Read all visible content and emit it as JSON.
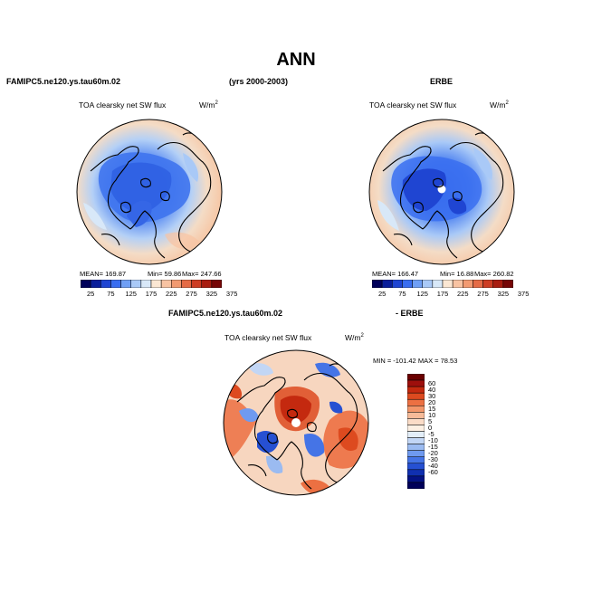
{
  "page": {
    "title": "ANN",
    "model_label": "FAMIPC5.ne120.ys.tau60m.02",
    "years_label": "(yrs 2000-2003)",
    "obs_label": "ERBE",
    "diff_left_label": "FAMIPC5.ne120.ys.tau60m.02",
    "diff_right_label": "- ERBE"
  },
  "panels": {
    "model": {
      "variable": "TOA clearsky net SW flux",
      "units": "W/m",
      "units_sup": "2",
      "mean": "MEAN= 169.87",
      "min": "Min=  59.86",
      "max": "Max= 247.66"
    },
    "obs": {
      "variable": "TOA clearsky net SW flux",
      "units": "W/m",
      "units_sup": "2",
      "mean": "MEAN= 166.47",
      "min": "Min=  16.88",
      "max": "Max= 260.82"
    },
    "diff": {
      "variable": "TOA clearsky net SW flux",
      "units": "W/m",
      "units_sup": "2",
      "minmax": "MIN = -101.42  MAX =  78.53"
    }
  },
  "colorbars": {
    "abs": {
      "colors": [
        "#00005a",
        "#0a1e9a",
        "#1f45d2",
        "#3a6ef0",
        "#6f9ff5",
        "#a9c9f7",
        "#d8e8f8",
        "#fbe7d3",
        "#f8c3a2",
        "#f29a71",
        "#e56b46",
        "#cd3d24",
        "#a81d10",
        "#760606"
      ],
      "labels": [
        "25",
        "75",
        "125",
        "175",
        "225",
        "275",
        "325",
        "375"
      ]
    },
    "diff": {
      "colors": [
        "#6a0000",
        "#9e0f0c",
        "#c4290f",
        "#dd4a1f",
        "#ec7042",
        "#f3966a",
        "#f7bb99",
        "#fbdcc7",
        "#fdf0e3",
        "#e3eef9",
        "#c2d6f5",
        "#9bbbf1",
        "#6f9af0",
        "#4574e6",
        "#2650d2",
        "#1030b0",
        "#041284",
        "#00005a"
      ],
      "labels": [
        "60",
        "40",
        "30",
        "20",
        "15",
        "10",
        "5",
        "0",
        "-5",
        "-10",
        "-15",
        "-20",
        "-30",
        "-40",
        "-60"
      ]
    }
  }
}
